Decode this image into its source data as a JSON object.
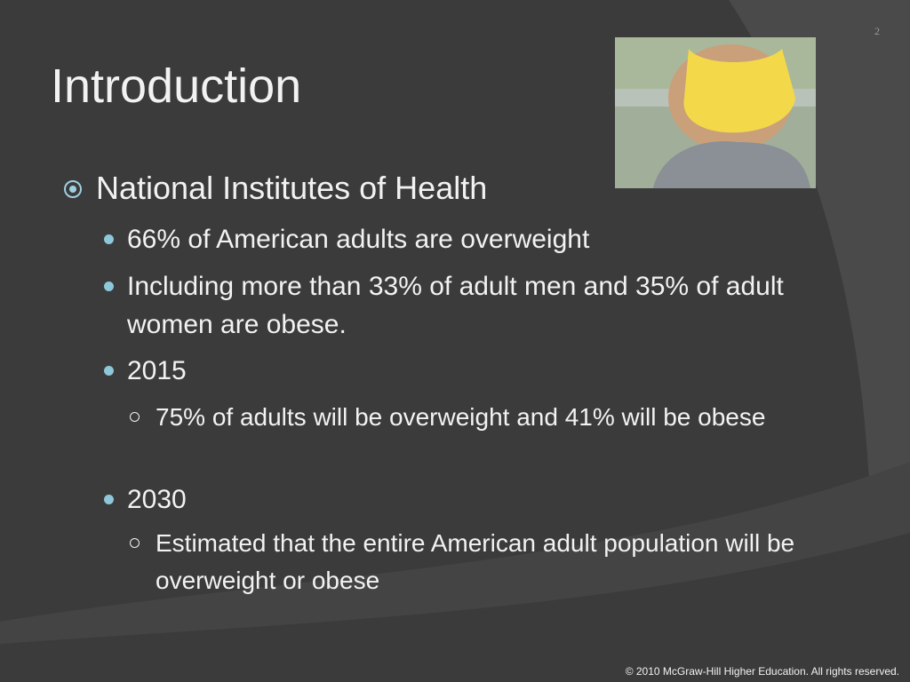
{
  "slide": {
    "number": "2",
    "title": "Introduction",
    "bullets": [
      {
        "text": "National Institutes of Health",
        "children": [
          {
            "text": "66% of American adults are overweight"
          },
          {
            "text": "Including more than 33% of adult men and 35% of adult women are obese."
          },
          {
            "text": "2015",
            "children": [
              {
                "text": "75% of adults will be overweight and 41% will be obese"
              }
            ]
          },
          {
            "text": "2030",
            "children": [
              {
                "text": "Estimated that the entire American adult population will be overweight or obese"
              }
            ]
          }
        ]
      }
    ],
    "footer": "© 2010 McGraw-Hill Higher Education. All rights reserved."
  }
}
